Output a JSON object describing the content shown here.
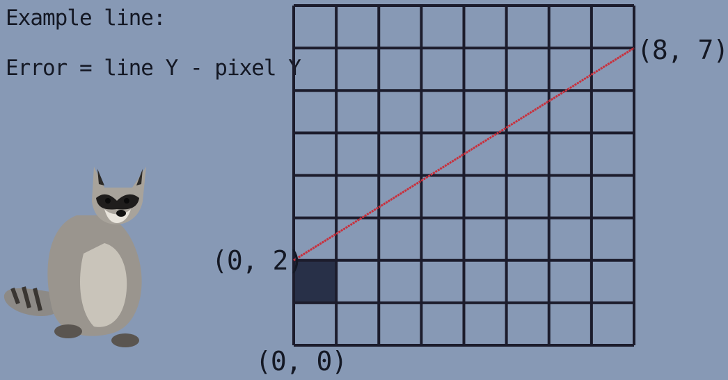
{
  "caption": {
    "title": "Example line:",
    "formula": "Error = line Y - pixel Y"
  },
  "grid": {
    "columns": 8,
    "rows": 8,
    "line_color": "#1c1c2c",
    "filled_pixel": {
      "x": 0,
      "y": 2,
      "color": "#283048"
    }
  },
  "line": {
    "start": {
      "x": 0,
      "y": 2
    },
    "end": {
      "x": 8,
      "y": 7
    },
    "color": "#c8303c"
  },
  "labels": {
    "start": "(0, 2)",
    "end": "(8, 7)",
    "origin": "(0, 0)"
  },
  "illustration": {
    "icon": "raccoon-icon"
  }
}
